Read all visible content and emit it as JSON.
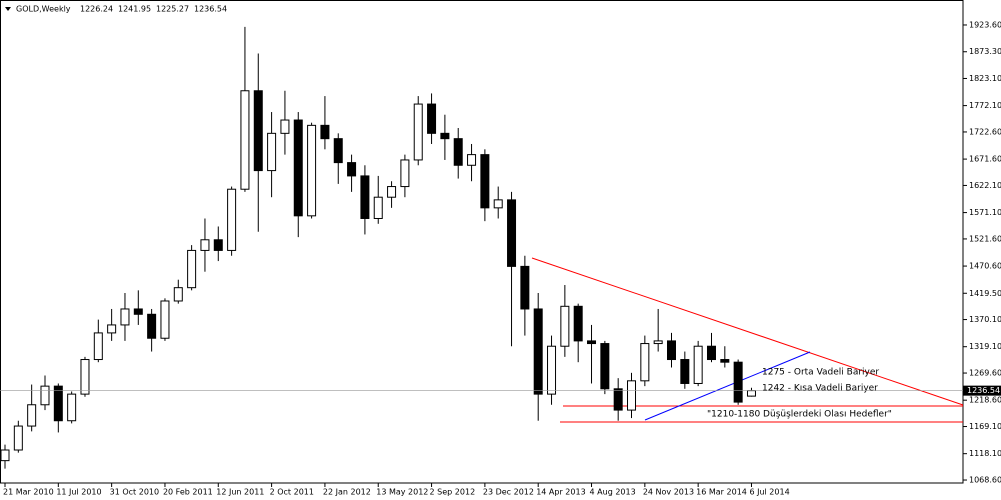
{
  "chart_data": {
    "type": "candlestick",
    "title": "GOLD,Weekly",
    "header_values": [
      1226.24,
      1241.95,
      1225.27,
      1236.54
    ],
    "categories": [
      "21 Mar 2010",
      null,
      null,
      null,
      "11 Jul 2010",
      null,
      null,
      null,
      "31 Oct 2010",
      null,
      null,
      null,
      "20 Feb 2011",
      null,
      null,
      null,
      "12 Jun 2011",
      null,
      null,
      null,
      "2 Oct 2011",
      null,
      null,
      null,
      "22 Jan 2012",
      null,
      null,
      null,
      "13 May 2012",
      null,
      null,
      null,
      "2 Sep 2012",
      null,
      null,
      null,
      "23 Dec 2012",
      null,
      null,
      null,
      "14 Apr 2013",
      null,
      null,
      null,
      "4 Aug 2013",
      null,
      null,
      null,
      "24 Nov 2013",
      null,
      null,
      null,
      "16 Mar 2014",
      null,
      null,
      null,
      "6 Jul 2014"
    ],
    "open": [
      1105,
      1125,
      1170,
      1210,
      1245,
      1180,
      1230,
      1295,
      1345,
      1360,
      1390,
      1380,
      1335,
      1405,
      1430,
      1500,
      1520,
      1500,
      1615,
      1800,
      1650,
      1720,
      1745,
      1565,
      1735,
      1710,
      1665,
      1640,
      1560,
      1600,
      1620,
      1670,
      1775,
      1720,
      1710,
      1660,
      1680,
      1580,
      1595,
      1470,
      1390,
      1230,
      1320,
      1395,
      1330,
      1325,
      1240,
      1200,
      1255,
      1325,
      1330,
      1295,
      1250,
      1320,
      1295,
      1290,
      1226.24
    ],
    "high": [
      1135,
      1180,
      1248,
      1265,
      1250,
      1235,
      1300,
      1370,
      1390,
      1420,
      1425,
      1390,
      1410,
      1445,
      1510,
      1560,
      1545,
      1620,
      1920,
      1870,
      1760,
      1800,
      1760,
      1740,
      1790,
      1720,
      1680,
      1660,
      1640,
      1630,
      1680,
      1790,
      1795,
      1755,
      1730,
      1700,
      1690,
      1620,
      1610,
      1490,
      1420,
      1340,
      1435,
      1400,
      1360,
      1330,
      1260,
      1270,
      1340,
      1390,
      1345,
      1310,
      1330,
      1345,
      1320,
      1295,
      1241.95
    ],
    "low": [
      1090,
      1120,
      1160,
      1200,
      1158,
      1175,
      1225,
      1290,
      1330,
      1330,
      1360,
      1310,
      1330,
      1400,
      1425,
      1460,
      1480,
      1490,
      1610,
      1535,
      1600,
      1680,
      1525,
      1560,
      1690,
      1625,
      1610,
      1530,
      1550,
      1580,
      1600,
      1660,
      1700,
      1670,
      1635,
      1630,
      1555,
      1560,
      1320,
      1340,
      1180,
      1210,
      1300,
      1290,
      1250,
      1230,
      1180,
      1185,
      1245,
      1310,
      1280,
      1240,
      1245,
      1290,
      1280,
      1210,
      1225.27
    ],
    "close": [
      1125,
      1170,
      1210,
      1245,
      1180,
      1230,
      1295,
      1345,
      1360,
      1390,
      1380,
      1335,
      1405,
      1430,
      1500,
      1520,
      1500,
      1615,
      1800,
      1650,
      1720,
      1745,
      1565,
      1735,
      1710,
      1665,
      1640,
      1560,
      1600,
      1620,
      1670,
      1775,
      1720,
      1710,
      1660,
      1680,
      1580,
      1595,
      1470,
      1390,
      1230,
      1320,
      1395,
      1330,
      1325,
      1240,
      1200,
      1255,
      1325,
      1330,
      1295,
      1250,
      1320,
      1295,
      1290,
      1215,
      1236.54
    ],
    "ylim": [
      1063,
      1955.5
    ],
    "yticks": [
      {
        "value": 1068.6,
        "label": "1068.60"
      },
      {
        "value": 1118.1,
        "label": "1118.10"
      },
      {
        "value": 1169.1,
        "label": "1169.10"
      },
      {
        "value": 1218.6,
        "label": "1218.60"
      },
      {
        "value": 1269.6,
        "label": "1269.60"
      },
      {
        "value": 1319.1,
        "label": "1319.10"
      },
      {
        "value": 1370.1,
        "label": "1370.10"
      },
      {
        "value": 1419.5,
        "label": "1419.50"
      },
      {
        "value": 1470.6,
        "label": "1470.60"
      },
      {
        "value": 1521.6,
        "label": "1521.60"
      },
      {
        "value": 1571.1,
        "label": "1571.10"
      },
      {
        "value": 1622.1,
        "label": "1622.10"
      },
      {
        "value": 1671.6,
        "label": "1671.60"
      },
      {
        "value": 1722.6,
        "label": "1722.60"
      },
      {
        "value": 1772.1,
        "label": "1772.10"
      },
      {
        "value": 1823.1,
        "label": "1823.10"
      },
      {
        "value": 1873.3,
        "label": "1873.30"
      },
      {
        "value": 1923.6,
        "label": "1923.60"
      }
    ],
    "annotations": [
      "1275 - Orta Vadeli Bariyer",
      "1242 - Kısa Vadeli Bariyer",
      "\"1210-1180 Düşüşlerdeki Olası Hedefler\""
    ]
  }
}
